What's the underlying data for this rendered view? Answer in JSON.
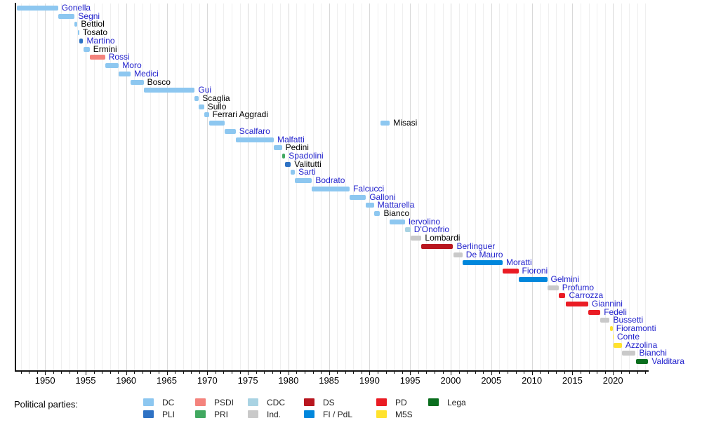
{
  "chart_data": {
    "type": "timeline",
    "x_domain": [
      1946.35,
      2024.4
    ],
    "x_major_ticks": [
      1950,
      1955,
      1960,
      1965,
      1970,
      1975,
      1980,
      1985,
      1990,
      1995,
      2000,
      2005,
      2010,
      2015,
      2020
    ],
    "x_minor_tick_step": 1,
    "grid": {
      "vertical_step_years": 1,
      "minor_color": "#efefef",
      "major_color": "#d9d9d9"
    },
    "link_label_color": "#2222cd",
    "plain_label_color": "#000000",
    "parties": {
      "DC": "#8dc7f0",
      "PLI": "#2e72c4",
      "PSDI": "#f4837d",
      "PRI": "#41a860",
      "CDC": "#a9d3e3",
      "Ind": "#c9c9c9",
      "DS": "#b8161f",
      "FI_PdL": "#0087dc",
      "PD": "#ea1c24",
      "M5S": "#ffe22e",
      "Lega": "#0a6e1e"
    },
    "ministers": [
      {
        "name": "Gonella",
        "party": "DC",
        "link": true,
        "terms": [
          [
            1946.55,
            1951.6
          ]
        ]
      },
      {
        "name": "Segni",
        "party": "DC",
        "link": true,
        "terms": [
          [
            1951.6,
            1953.65
          ]
        ]
      },
      {
        "name": "Bettiol",
        "party": "DC",
        "link": false,
        "terms": [
          [
            1953.65,
            1954.0
          ]
        ]
      },
      {
        "name": "Tosato",
        "party": "DC",
        "link": false,
        "terms": [
          [
            1954.05,
            1954.2
          ]
        ]
      },
      {
        "name": "Martino",
        "party": "PLI",
        "link": true,
        "terms": [
          [
            1954.2,
            1954.7
          ]
        ]
      },
      {
        "name": "Ermini",
        "party": "DC",
        "link": false,
        "terms": [
          [
            1954.7,
            1955.5
          ]
        ]
      },
      {
        "name": "Rossi",
        "party": "PSDI",
        "link": true,
        "terms": [
          [
            1955.5,
            1957.4
          ]
        ]
      },
      {
        "name": "Moro",
        "party": "DC",
        "link": true,
        "terms": [
          [
            1957.4,
            1959.1
          ]
        ]
      },
      {
        "name": "Medici",
        "party": "DC",
        "link": true,
        "terms": [
          [
            1959.1,
            1960.55
          ]
        ]
      },
      {
        "name": "Bosco",
        "party": "DC",
        "link": false,
        "terms": [
          [
            1960.55,
            1962.15
          ]
        ]
      },
      {
        "name": "Gui",
        "party": "DC",
        "link": true,
        "terms": [
          [
            1962.15,
            1968.45
          ]
        ]
      },
      {
        "name": "Scaglia",
        "party": "DC",
        "link": false,
        "terms": [
          [
            1968.45,
            1968.95
          ]
        ]
      },
      {
        "name": "Sullo",
        "party": "DC",
        "link": false,
        "terms": [
          [
            1968.95,
            1969.6
          ]
        ]
      },
      {
        "name": "Ferrari Aggradi",
        "party": "DC",
        "link": false,
        "terms": [
          [
            1969.6,
            1970.2
          ]
        ]
      },
      {
        "name": "Misasi",
        "party": "DC",
        "link": false,
        "terms": [
          [
            1970.2,
            1972.1
          ],
          [
            1991.3,
            1992.5
          ]
        ]
      },
      {
        "name": "Scalfaro",
        "party": "DC",
        "link": true,
        "terms": [
          [
            1972.1,
            1973.5
          ]
        ]
      },
      {
        "name": "Malfatti",
        "party": "DC",
        "link": true,
        "terms": [
          [
            1973.5,
            1978.2
          ]
        ]
      },
      {
        "name": "Pedini",
        "party": "DC",
        "link": false,
        "terms": [
          [
            1978.2,
            1979.2
          ]
        ]
      },
      {
        "name": "Spadolini",
        "party": "PRI",
        "link": true,
        "terms": [
          [
            1979.2,
            1979.6
          ]
        ]
      },
      {
        "name": "Valitutti",
        "party": "PLI",
        "link": false,
        "terms": [
          [
            1979.6,
            1980.3
          ]
        ]
      },
      {
        "name": "Sarti",
        "party": "DC",
        "link": true,
        "terms": [
          [
            1980.3,
            1980.8
          ]
        ]
      },
      {
        "name": "Bodrato",
        "party": "DC",
        "link": true,
        "terms": [
          [
            1980.8,
            1982.9
          ]
        ]
      },
      {
        "name": "Falcucci",
        "party": "DC",
        "link": true,
        "terms": [
          [
            1982.9,
            1987.55
          ]
        ]
      },
      {
        "name": "Galloni",
        "party": "DC",
        "link": true,
        "terms": [
          [
            1987.55,
            1989.55
          ]
        ]
      },
      {
        "name": "Mattarella",
        "party": "DC",
        "link": true,
        "terms": [
          [
            1989.55,
            1990.55
          ]
        ]
      },
      {
        "name": "Bianco",
        "party": "DC",
        "link": false,
        "terms": [
          [
            1990.55,
            1991.3
          ]
        ]
      },
      {
        "name": "Iervolino",
        "party": "DC",
        "link": true,
        "terms": [
          [
            1992.5,
            1994.35
          ]
        ]
      },
      {
        "name": "D'Onofrio",
        "party": "CDC",
        "link": true,
        "terms": [
          [
            1994.35,
            1995.05
          ]
        ]
      },
      {
        "name": "Lombardi",
        "party": "Ind",
        "link": false,
        "terms": [
          [
            1995.05,
            1996.4
          ]
        ]
      },
      {
        "name": "Berlinguer",
        "party": "DS",
        "link": true,
        "terms": [
          [
            1996.4,
            2000.3
          ]
        ]
      },
      {
        "name": "De Mauro",
        "party": "Ind",
        "link": true,
        "terms": [
          [
            2000.3,
            2001.45
          ]
        ]
      },
      {
        "name": "Moratti",
        "party": "FI_PdL",
        "link": true,
        "terms": [
          [
            2001.45,
            2006.4
          ]
        ]
      },
      {
        "name": "Fioroni",
        "party": "PD",
        "link": true,
        "terms": [
          [
            2006.4,
            2008.35
          ]
        ]
      },
      {
        "name": "Gelmini",
        "party": "FI_PdL",
        "link": true,
        "terms": [
          [
            2008.35,
            2011.9
          ]
        ]
      },
      {
        "name": "Profumo",
        "party": "Ind",
        "link": true,
        "terms": [
          [
            2011.9,
            2013.3
          ]
        ]
      },
      {
        "name": "Carrozza",
        "party": "PD",
        "link": true,
        "terms": [
          [
            2013.3,
            2014.15
          ]
        ]
      },
      {
        "name": "Giannini",
        "party": "PD",
        "link": true,
        "terms": [
          [
            2014.15,
            2016.95
          ]
        ]
      },
      {
        "name": "Fedeli",
        "party": "PD",
        "link": true,
        "terms": [
          [
            2016.95,
            2018.45
          ]
        ]
      },
      {
        "name": "Bussetti",
        "party": "Ind",
        "link": true,
        "terms": [
          [
            2018.45,
            2019.6
          ]
        ]
      },
      {
        "name": "Fioramonti",
        "party": "M5S",
        "link": true,
        "terms": [
          [
            2019.6,
            2019.97
          ]
        ]
      },
      {
        "name": "Conte",
        "party": "M5S",
        "link": true,
        "terms": [
          [
            2019.98,
            2020.07
          ]
        ]
      },
      {
        "name": "Azzolina",
        "party": "M5S",
        "link": true,
        "terms": [
          [
            2020.07,
            2021.1
          ]
        ]
      },
      {
        "name": "Bianchi",
        "party": "Ind",
        "link": true,
        "terms": [
          [
            2021.1,
            2022.8
          ]
        ]
      },
      {
        "name": "Valditara",
        "party": "Lega",
        "link": true,
        "terms": [
          [
            2022.8,
            2024.35
          ]
        ]
      }
    ]
  },
  "legend": {
    "title": "Political parties:",
    "items": [
      {
        "label": "DC",
        "party": "DC"
      },
      {
        "label": "PLI",
        "party": "PLI"
      },
      {
        "label": "PSDI",
        "party": "PSDI"
      },
      {
        "label": "PRI",
        "party": "PRI"
      },
      {
        "label": "CDC",
        "party": "CDC"
      },
      {
        "label": "Ind.",
        "party": "Ind"
      },
      {
        "label": "DS",
        "party": "DS"
      },
      {
        "label": "FI / PdL",
        "party": "FI_PdL"
      },
      {
        "label": "PD",
        "party": "PD"
      },
      {
        "label": "M5S",
        "party": "M5S"
      },
      {
        "label": "Lega",
        "party": "Lega"
      }
    ]
  }
}
